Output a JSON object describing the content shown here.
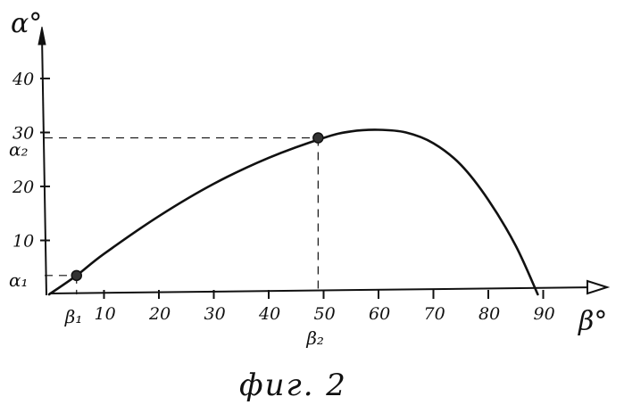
{
  "chart_data": {
    "type": "line",
    "xlabel": "β°",
    "ylabel": "α°",
    "xlim": [
      0,
      100
    ],
    "ylim": [
      0,
      47
    ],
    "x_ticks": [
      10,
      20,
      30,
      40,
      50,
      60,
      70,
      80,
      90
    ],
    "y_ticks": [
      10,
      20,
      30,
      40
    ],
    "series": [
      {
        "x": [
          0,
          5,
          10,
          20,
          30,
          40,
          50,
          55,
          60,
          65,
          70,
          75,
          80,
          85,
          89
        ],
        "values": [
          0,
          3.5,
          7.5,
          14.5,
          20.5,
          25.3,
          29,
          30.2,
          30.5,
          30,
          28,
          24,
          17.5,
          9,
          0
        ]
      }
    ],
    "markers": [
      {
        "x": 5,
        "y": 3.5,
        "x_label": "β₁",
        "y_label": "α₁"
      },
      {
        "x": 49,
        "y": 29,
        "x_label": "β₂",
        "y_label": "α₂"
      }
    ],
    "grid": false,
    "caption": "фиг. 2"
  }
}
